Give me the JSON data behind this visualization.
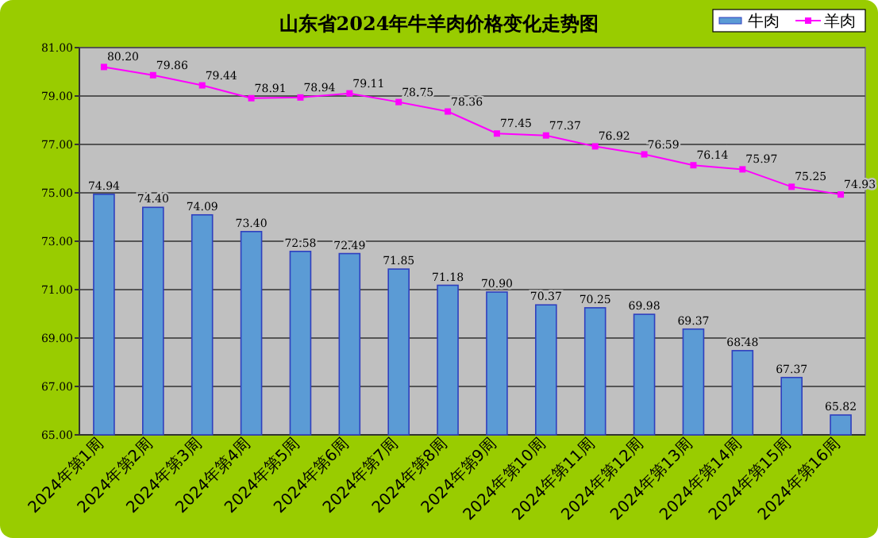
{
  "chart_data": {
    "type": "bar",
    "title": "山东省2024年牛羊肉价格变化走势图",
    "categories": [
      "2024年第1周",
      "2024年第2周",
      "2024年第3周",
      "2024年第4周",
      "2024年第5周",
      "2024年第6周",
      "2024年第7周",
      "2024年第8周",
      "2024年第9周",
      "2024年第10周",
      "2024年第11周",
      "2024年第12周",
      "2024年第13周",
      "2024年第14周",
      "2024年第15周",
      "2024年第16周"
    ],
    "series": [
      {
        "name": "牛肉",
        "color": "#5b9bd5",
        "values": [
          74.94,
          74.4,
          74.09,
          73.4,
          72.58,
          72.49,
          71.85,
          71.18,
          70.9,
          70.37,
          70.25,
          69.98,
          69.37,
          68.48,
          67.37,
          65.82
        ],
        "value_labels": [
          "74.94",
          "74.40",
          "74.09",
          "73.40",
          "72.58",
          "72.49",
          "71.85",
          "71.18",
          "70.90",
          "70.37",
          "70.25",
          "69.98",
          "69.37",
          "68.48",
          "67.37",
          "65.82"
        ]
      },
      {
        "name": "羊肉",
        "type": "line",
        "color": "#ff00ff",
        "marker": "square",
        "values": [
          80.2,
          79.86,
          79.44,
          78.91,
          78.94,
          79.11,
          78.75,
          78.36,
          77.45,
          77.37,
          76.92,
          76.59,
          76.14,
          75.97,
          75.25,
          74.93
        ],
        "value_labels": [
          "80.20",
          "79.86",
          "79.44",
          "78.91",
          "78.94",
          "79.11",
          "78.75",
          "78.36",
          "77.45",
          "77.37",
          "76.92",
          "76.59",
          "76.14",
          "75.97",
          "75.25",
          "74.93"
        ]
      }
    ],
    "ylim": [
      65,
      81
    ],
    "yticks": [
      {
        "value": 65,
        "label": "65.00"
      },
      {
        "value": 67,
        "label": "67.00"
      },
      {
        "value": 69,
        "label": "69.00"
      },
      {
        "value": 71,
        "label": "71.00"
      },
      {
        "value": 73,
        "label": "73.00"
      },
      {
        "value": 75,
        "label": "75.00"
      },
      {
        "value": 77,
        "label": "77.00"
      },
      {
        "value": 79,
        "label": "79.00"
      },
      {
        "value": 81,
        "label": "81.00"
      }
    ],
    "grid": "y",
    "legend": "top right"
  }
}
